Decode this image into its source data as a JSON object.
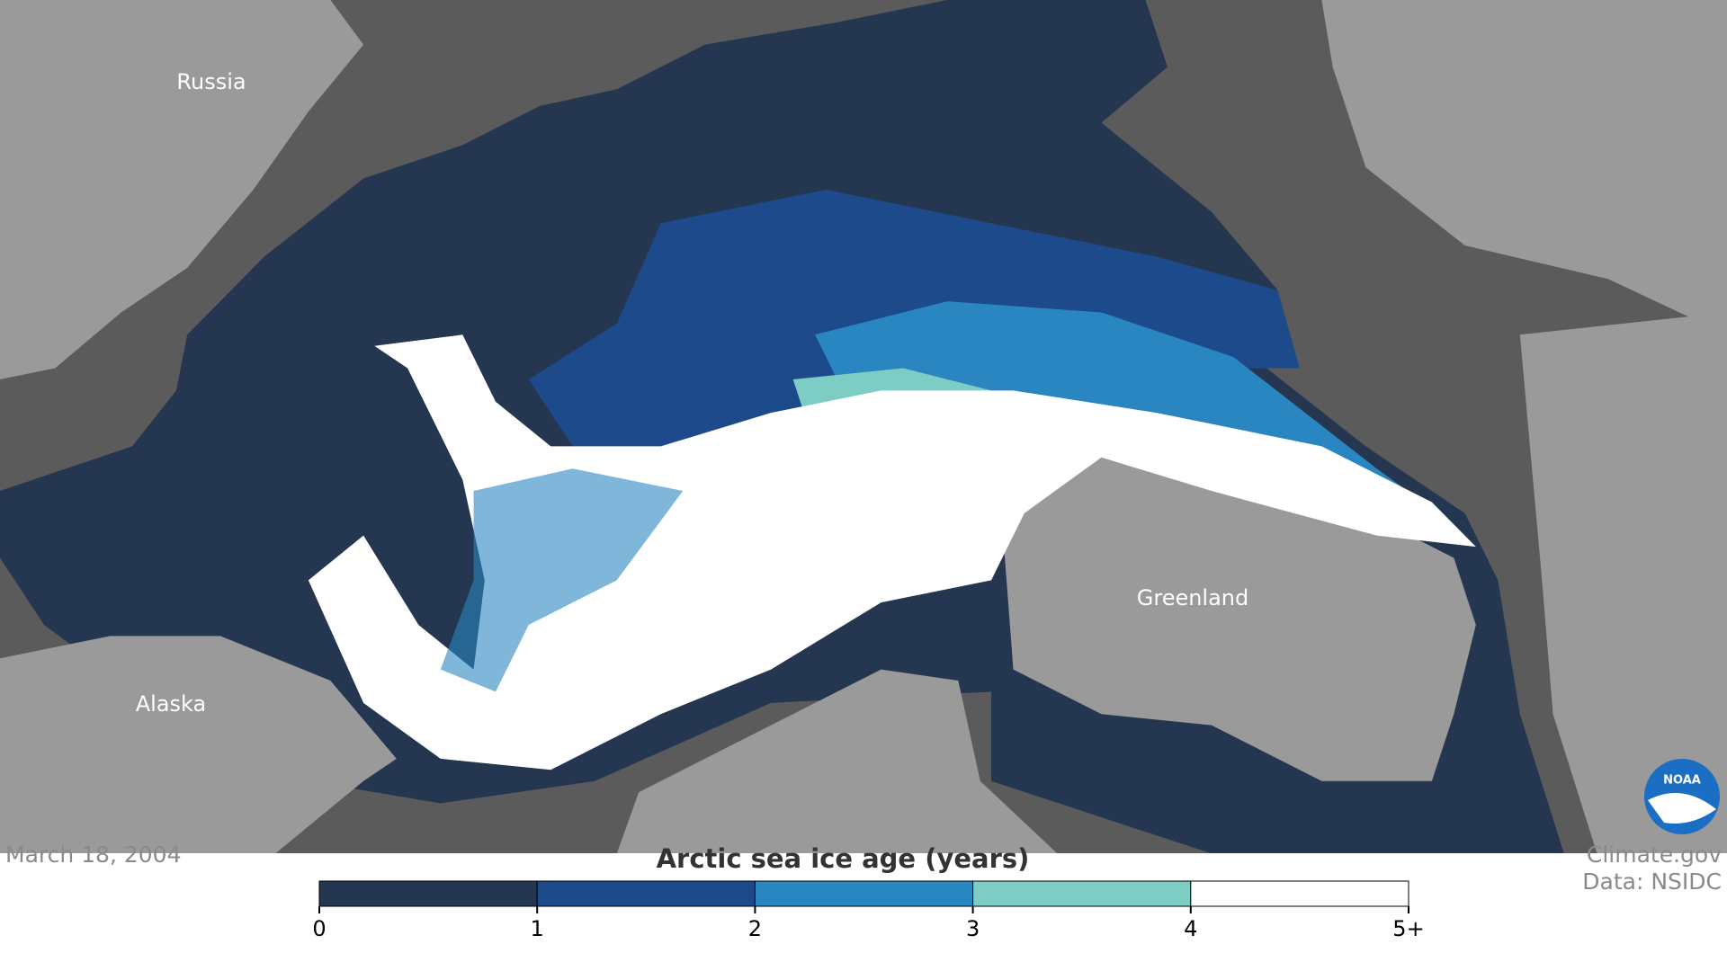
{
  "map": {
    "labels": [
      "Russia",
      "Alaska",
      "Greenland"
    ],
    "date": "March 18, 2004",
    "credits": [
      "Climate.gov",
      "Data: NSIDC"
    ],
    "logo": "NOAA"
  },
  "legend": {
    "title": "Arctic sea ice age (years)",
    "lim": [
      0,
      5
    ],
    "ticks": [
      0,
      1,
      2,
      3,
      4,
      {
        "value": 5,
        "label": "5+"
      }
    ],
    "colors": [
      "#243650",
      "#1c4a8a",
      "#2a86c0",
      "#7dcdc4",
      "#ffffff"
    ]
  }
}
